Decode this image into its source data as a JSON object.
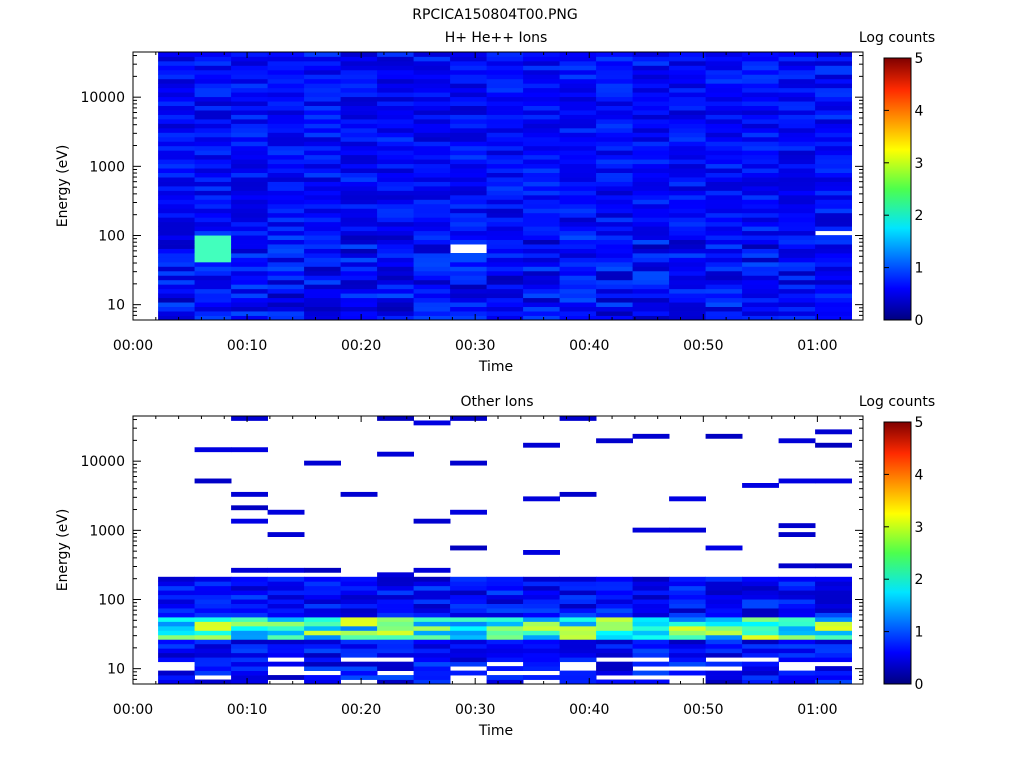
{
  "figure": {
    "title": "RPCICA150804T00.PNG"
  },
  "chart_data": [
    {
      "type": "heatmap",
      "title": "H+ He++ Ions",
      "xlabel": "Time",
      "ylabel": "Energy (eV)",
      "x_ticks": [
        "00:00",
        "00:10",
        "00:20",
        "00:30",
        "00:40",
        "00:50",
        "01:00"
      ],
      "x_range_minutes": [
        0,
        64
      ],
      "y_scale": "log",
      "y_range": [
        6,
        45000
      ],
      "y_ticks": [
        "10",
        "100",
        "1000",
        "10000"
      ],
      "colorbar": {
        "label": "Log counts",
        "range": [
          0,
          5
        ],
        "ticks": [
          "0",
          "1",
          "2",
          "3",
          "4",
          "5"
        ]
      },
      "time_columns": 19,
      "first_column_start_minutes": 2.2,
      "column_width_minutes": 3.2,
      "energy_bins": 60,
      "color_level": "mostly 0.6-1.2 log counts; low-energy bins (10-100 eV) 0.2-1.0 with a peak of about 2.2 near 50 eV at 00:06",
      "gaps": [
        "00:28 ~ 70 eV",
        "01:02 ~ 100 eV"
      ]
    },
    {
      "type": "heatmap",
      "title": "Other Ions",
      "xlabel": "Time",
      "ylabel": "Energy (eV)",
      "x_ticks": [
        "00:00",
        "00:10",
        "00:20",
        "00:30",
        "00:40",
        "00:50",
        "01:00"
      ],
      "x_range_minutes": [
        0,
        64
      ],
      "y_scale": "log",
      "y_range": [
        6,
        45000
      ],
      "y_ticks": [
        "10",
        "100",
        "1000",
        "10000"
      ],
      "colorbar": {
        "label": "Log counts",
        "range": [
          0,
          5
        ],
        "ticks": [
          "0",
          "1",
          "2",
          "3",
          "4",
          "5"
        ]
      },
      "time_columns": 19,
      "first_column_start_minutes": 2.2,
      "column_width_minutes": 3.2,
      "energy_bins": 60,
      "color_level": "dense counts below ~200 eV; peak 2.5-3.5 log counts around 30-50 eV; sparse single bins near 0.2-0.5 above 300 eV"
    }
  ]
}
